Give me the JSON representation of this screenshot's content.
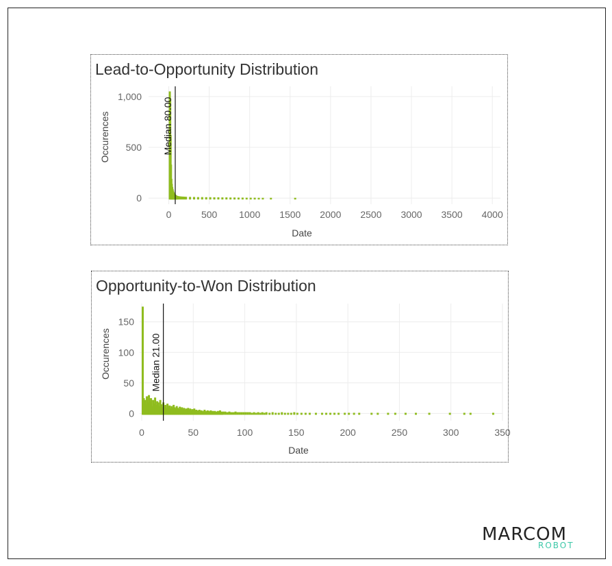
{
  "charts": [
    {
      "title": "Lead-to-Opportunity Distribution"
    },
    {
      "title": "Opportunity-to-Won Distribution"
    }
  ],
  "chart_data": [
    {
      "type": "bar",
      "title": "Lead-to-Opportunity Distribution",
      "xlabel": "Date",
      "ylabel": "Occurences",
      "xlim": [
        -250,
        4100
      ],
      "ylim": [
        -60,
        1100
      ],
      "x_ticks": [
        0,
        500,
        1000,
        1500,
        2000,
        2500,
        3000,
        3500,
        4000
      ],
      "x_tick_labels": [
        "0",
        "500",
        "1000",
        "1500",
        "2000",
        "2500",
        "3000",
        "3500",
        "4000"
      ],
      "y_ticks": [
        0,
        500,
        1000
      ],
      "y_tick_labels": [
        "0",
        "500",
        "1,000"
      ],
      "grid": true,
      "bar_color": "#8fbc1e",
      "median": {
        "value": 80,
        "label": "Median 80.00"
      },
      "bins": [
        {
          "x": 0,
          "y": 1050
        },
        {
          "x": 5,
          "y": 980
        },
        {
          "x": 10,
          "y": 620
        },
        {
          "x": 15,
          "y": 330
        },
        {
          "x": 20,
          "y": 190
        },
        {
          "x": 25,
          "y": 140
        },
        {
          "x": 30,
          "y": 110
        },
        {
          "x": 35,
          "y": 90
        },
        {
          "x": 40,
          "y": 75
        },
        {
          "x": 45,
          "y": 60
        },
        {
          "x": 50,
          "y": 52
        },
        {
          "x": 55,
          "y": 45
        },
        {
          "x": 60,
          "y": 40
        },
        {
          "x": 65,
          "y": 35
        },
        {
          "x": 70,
          "y": 30
        },
        {
          "x": 75,
          "y": 28
        },
        {
          "x": 80,
          "y": 25
        },
        {
          "x": 90,
          "y": 22
        },
        {
          "x": 100,
          "y": 20
        },
        {
          "x": 120,
          "y": 18
        },
        {
          "x": 140,
          "y": 16
        },
        {
          "x": 160,
          "y": 15
        },
        {
          "x": 180,
          "y": 14
        },
        {
          "x": 200,
          "y": 13
        },
        {
          "x": 250,
          "y": 12
        },
        {
          "x": 300,
          "y": 11
        },
        {
          "x": 350,
          "y": 10
        },
        {
          "x": 400,
          "y": 10
        },
        {
          "x": 450,
          "y": 9
        },
        {
          "x": 500,
          "y": 9
        },
        {
          "x": 550,
          "y": 8
        },
        {
          "x": 600,
          "y": 8
        },
        {
          "x": 650,
          "y": 7
        },
        {
          "x": 700,
          "y": 7
        },
        {
          "x": 750,
          "y": 6
        },
        {
          "x": 800,
          "y": 6
        },
        {
          "x": 850,
          "y": 5
        },
        {
          "x": 900,
          "y": 5
        },
        {
          "x": 950,
          "y": 4
        },
        {
          "x": 1000,
          "y": 4
        },
        {
          "x": 1050,
          "y": 4
        },
        {
          "x": 1100,
          "y": 3
        },
        {
          "x": 1150,
          "y": 3
        },
        {
          "x": 1250,
          "y": 3
        },
        {
          "x": 1550,
          "y": 3
        }
      ]
    },
    {
      "type": "bar",
      "title": "Opportunity-to-Won Distribution",
      "xlabel": "Date",
      "ylabel": "Occurences",
      "xlim": [
        -2,
        350
      ],
      "ylim": [
        -12,
        180
      ],
      "x_ticks": [
        0,
        50,
        100,
        150,
        200,
        250,
        300,
        350
      ],
      "x_tick_labels": [
        "0",
        "50",
        "100",
        "150",
        "200",
        "250",
        "300",
        "350"
      ],
      "y_ticks": [
        0,
        50,
        100,
        150
      ],
      "y_tick_labels": [
        "0",
        "50",
        "100",
        "150"
      ],
      "grid": true,
      "bar_color": "#8fbc1e",
      "median": {
        "value": 21,
        "label": "Median 21.00"
      },
      "bins": [
        {
          "x": 0,
          "y": 175
        },
        {
          "x": 1,
          "y": 25
        },
        {
          "x": 2,
          "y": 22
        },
        {
          "x": 3,
          "y": 15
        },
        {
          "x": 4,
          "y": 28
        },
        {
          "x": 5,
          "y": 18
        },
        {
          "x": 6,
          "y": 30
        },
        {
          "x": 7,
          "y": 20
        },
        {
          "x": 8,
          "y": 25
        },
        {
          "x": 9,
          "y": 12
        },
        {
          "x": 10,
          "y": 22
        },
        {
          "x": 11,
          "y": 16
        },
        {
          "x": 12,
          "y": 26
        },
        {
          "x": 13,
          "y": 14
        },
        {
          "x": 14,
          "y": 20
        },
        {
          "x": 15,
          "y": 18
        },
        {
          "x": 16,
          "y": 12
        },
        {
          "x": 17,
          "y": 22
        },
        {
          "x": 18,
          "y": 15
        },
        {
          "x": 19,
          "y": 10
        },
        {
          "x": 20,
          "y": 18
        },
        {
          "x": 21,
          "y": 12
        },
        {
          "x": 22,
          "y": 14
        },
        {
          "x": 23,
          "y": 9
        },
        {
          "x": 24,
          "y": 16
        },
        {
          "x": 25,
          "y": 11
        },
        {
          "x": 26,
          "y": 13
        },
        {
          "x": 27,
          "y": 8
        },
        {
          "x": 28,
          "y": 12
        },
        {
          "x": 29,
          "y": 9
        },
        {
          "x": 30,
          "y": 14
        },
        {
          "x": 31,
          "y": 10
        },
        {
          "x": 32,
          "y": 8
        },
        {
          "x": 33,
          "y": 12
        },
        {
          "x": 34,
          "y": 9
        },
        {
          "x": 35,
          "y": 7
        },
        {
          "x": 36,
          "y": 11
        },
        {
          "x": 37,
          "y": 8
        },
        {
          "x": 38,
          "y": 10
        },
        {
          "x": 39,
          "y": 7
        },
        {
          "x": 40,
          "y": 9
        },
        {
          "x": 41,
          "y": 6
        },
        {
          "x": 42,
          "y": 8
        },
        {
          "x": 43,
          "y": 7
        },
        {
          "x": 44,
          "y": 9
        },
        {
          "x": 45,
          "y": 6
        },
        {
          "x": 46,
          "y": 8
        },
        {
          "x": 47,
          "y": 5
        },
        {
          "x": 48,
          "y": 7
        },
        {
          "x": 49,
          "y": 6
        },
        {
          "x": 50,
          "y": 8
        },
        {
          "x": 51,
          "y": 5
        },
        {
          "x": 52,
          "y": 6
        },
        {
          "x": 53,
          "y": 4
        },
        {
          "x": 54,
          "y": 5
        },
        {
          "x": 55,
          "y": 6
        },
        {
          "x": 56,
          "y": 4
        },
        {
          "x": 57,
          "y": 5
        },
        {
          "x": 58,
          "y": 3
        },
        {
          "x": 59,
          "y": 4
        },
        {
          "x": 60,
          "y": 6
        },
        {
          "x": 61,
          "y": 4
        },
        {
          "x": 62,
          "y": 3
        },
        {
          "x": 63,
          "y": 5
        },
        {
          "x": 64,
          "y": 4
        },
        {
          "x": 65,
          "y": 3
        },
        {
          "x": 66,
          "y": 5
        },
        {
          "x": 67,
          "y": 3
        },
        {
          "x": 68,
          "y": 4
        },
        {
          "x": 69,
          "y": 3
        },
        {
          "x": 70,
          "y": 4
        },
        {
          "x": 71,
          "y": 2
        },
        {
          "x": 72,
          "y": 3
        },
        {
          "x": 73,
          "y": 4
        },
        {
          "x": 74,
          "y": 3
        },
        {
          "x": 75,
          "y": 5
        },
        {
          "x": 76,
          "y": 3
        },
        {
          "x": 77,
          "y": 2
        },
        {
          "x": 78,
          "y": 3
        },
        {
          "x": 80,
          "y": 3
        },
        {
          "x": 82,
          "y": 2
        },
        {
          "x": 84,
          "y": 3
        },
        {
          "x": 86,
          "y": 2
        },
        {
          "x": 88,
          "y": 2
        },
        {
          "x": 90,
          "y": 3
        },
        {
          "x": 92,
          "y": 2
        },
        {
          "x": 94,
          "y": 2
        },
        {
          "x": 96,
          "y": 2
        },
        {
          "x": 98,
          "y": 2
        },
        {
          "x": 100,
          "y": 2
        },
        {
          "x": 102,
          "y": 2
        },
        {
          "x": 104,
          "y": 2
        },
        {
          "x": 106,
          "y": 1
        },
        {
          "x": 108,
          "y": 2
        },
        {
          "x": 110,
          "y": 1
        },
        {
          "x": 112,
          "y": 2
        },
        {
          "x": 114,
          "y": 1
        },
        {
          "x": 116,
          "y": 2
        },
        {
          "x": 118,
          "y": 1
        },
        {
          "x": 120,
          "y": 2
        },
        {
          "x": 123,
          "y": 1
        },
        {
          "x": 126,
          "y": 2
        },
        {
          "x": 129,
          "y": 1
        },
        {
          "x": 132,
          "y": 1
        },
        {
          "x": 135,
          "y": 2
        },
        {
          "x": 138,
          "y": 1
        },
        {
          "x": 141,
          "y": 1
        },
        {
          "x": 144,
          "y": 1
        },
        {
          "x": 147,
          "y": 2
        },
        {
          "x": 150,
          "y": 1
        },
        {
          "x": 154,
          "y": 1
        },
        {
          "x": 158,
          "y": 1
        },
        {
          "x": 162,
          "y": 1
        },
        {
          "x": 168,
          "y": 1
        },
        {
          "x": 174,
          "y": 1
        },
        {
          "x": 178,
          "y": 1
        },
        {
          "x": 182,
          "y": 1
        },
        {
          "x": 186,
          "y": 1
        },
        {
          "x": 190,
          "y": 1
        },
        {
          "x": 196,
          "y": 1
        },
        {
          "x": 200,
          "y": 1
        },
        {
          "x": 205,
          "y": 1
        },
        {
          "x": 210,
          "y": 1
        },
        {
          "x": 222,
          "y": 1
        },
        {
          "x": 228,
          "y": 1
        },
        {
          "x": 238,
          "y": 1
        },
        {
          "x": 245,
          "y": 1
        },
        {
          "x": 255,
          "y": 1
        },
        {
          "x": 265,
          "y": 1
        },
        {
          "x": 278,
          "y": 1
        },
        {
          "x": 298,
          "y": 1
        },
        {
          "x": 312,
          "y": 1
        },
        {
          "x": 318,
          "y": 1
        },
        {
          "x": 340,
          "y": 1
        }
      ]
    }
  ],
  "logo": {
    "main": "MARCOM",
    "sub": "ROBOT"
  }
}
